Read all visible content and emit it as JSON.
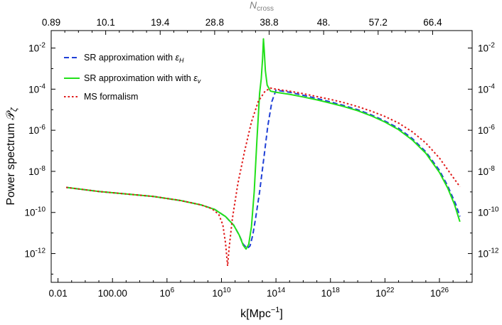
{
  "chart_data": {
    "type": "line",
    "xlabel": "k[Mpc",
    "xlabel_sup": "−1",
    "xlabel_close": "]",
    "ylabel": "Power spectrum 𝒫",
    "ylabel_sub": "ζ",
    "top_axis_label": "N",
    "top_axis_label_sub": "cross",
    "x_scale": "log",
    "y_scale": "log",
    "xlim_log10": [
      -2.5,
      28.4
    ],
    "ylim_log10": [
      -13.4,
      -1.15
    ],
    "bottom_ticks": [
      {
        "log10": -2,
        "label": "0.01"
      },
      {
        "log10": 2,
        "label": "100.00"
      },
      {
        "log10": 6,
        "base": "10",
        "exp": "6"
      },
      {
        "log10": 10,
        "base": "10",
        "exp": "10"
      },
      {
        "log10": 14,
        "base": "10",
        "exp": "14"
      },
      {
        "log10": 18,
        "base": "10",
        "exp": "18"
      },
      {
        "log10": 22,
        "base": "10",
        "exp": "22"
      },
      {
        "log10": 26,
        "base": "10",
        "exp": "26"
      }
    ],
    "top_ticks": [
      {
        "log10": -2.5,
        "label": "0.89"
      },
      {
        "log10": 1.5,
        "label": "10.1"
      },
      {
        "log10": 5.5,
        "label": "19.4"
      },
      {
        "log10": 9.5,
        "label": "28.8"
      },
      {
        "log10": 13.5,
        "label": "38.8"
      },
      {
        "log10": 17.5,
        "label": "48."
      },
      {
        "log10": 21.5,
        "label": "57.2"
      },
      {
        "log10": 25.5,
        "label": "66.4"
      }
    ],
    "y_ticks": [
      {
        "log10": -2,
        "base": "10",
        "exp": "-2"
      },
      {
        "log10": -4,
        "base": "10",
        "exp": "-4"
      },
      {
        "log10": -6,
        "base": "10",
        "exp": "-6"
      },
      {
        "log10": -8,
        "base": "10",
        "exp": "-8"
      },
      {
        "log10": -10,
        "base": "10",
        "exp": "-10"
      },
      {
        "log10": -12,
        "base": "10",
        "exp": "-12"
      }
    ],
    "legend_position": "top-left",
    "series": [
      {
        "name": "SR approximation with ",
        "name_symbol": "ε",
        "name_sub": "H",
        "color": "#1f3fd6",
        "dash": "dashed",
        "points_log10": [
          [
            -1.4,
            -8.78
          ],
          [
            1,
            -8.98
          ],
          [
            3,
            -9.1
          ],
          [
            5,
            -9.22
          ],
          [
            7,
            -9.42
          ],
          [
            8.5,
            -9.63
          ],
          [
            9.5,
            -9.85
          ],
          [
            10.3,
            -10.2
          ],
          [
            10.9,
            -10.62
          ],
          [
            11.3,
            -11.1
          ],
          [
            11.6,
            -11.55
          ],
          [
            11.9,
            -11.75
          ],
          [
            12.1,
            -11.62
          ],
          [
            12.3,
            -11.1
          ],
          [
            12.5,
            -10.3
          ],
          [
            12.8,
            -9.0
          ],
          [
            13.1,
            -7.4
          ],
          [
            13.4,
            -5.8
          ],
          [
            13.7,
            -4.6
          ],
          [
            14,
            -4.05
          ],
          [
            15,
            -4.15
          ],
          [
            16,
            -4.3
          ],
          [
            17,
            -4.45
          ],
          [
            18,
            -4.62
          ],
          [
            19,
            -4.8
          ],
          [
            20,
            -5.0
          ],
          [
            21,
            -5.25
          ],
          [
            22,
            -5.55
          ],
          [
            23,
            -5.9
          ],
          [
            24,
            -6.4
          ],
          [
            25,
            -7.05
          ],
          [
            26,
            -7.95
          ],
          [
            26.6,
            -8.7
          ],
          [
            27.2,
            -9.6
          ],
          [
            27.5,
            -10.2
          ]
        ]
      },
      {
        "name": "SR approximation with with ",
        "name_symbol": "ε",
        "name_sub": "v",
        "color": "#22e01a",
        "dash": "solid",
        "points_log10": [
          [
            -1.4,
            -8.78
          ],
          [
            1,
            -8.98
          ],
          [
            3,
            -9.1
          ],
          [
            5,
            -9.22
          ],
          [
            7,
            -9.42
          ],
          [
            8.5,
            -9.63
          ],
          [
            9.5,
            -9.85
          ],
          [
            10.3,
            -10.2
          ],
          [
            10.9,
            -10.62
          ],
          [
            11.3,
            -11.1
          ],
          [
            11.6,
            -11.6
          ],
          [
            11.8,
            -11.78
          ],
          [
            12,
            -11.55
          ],
          [
            12.2,
            -10.7
          ],
          [
            12.4,
            -9.0
          ],
          [
            12.6,
            -6.5
          ],
          [
            12.8,
            -4.2
          ],
          [
            12.92,
            -3.5
          ],
          [
            13.02,
            -2.5
          ],
          [
            13.08,
            -1.55
          ],
          [
            13.14,
            -2.1
          ],
          [
            13.22,
            -3.1
          ],
          [
            13.35,
            -3.8
          ],
          [
            13.6,
            -4.1
          ],
          [
            14,
            -4.15
          ],
          [
            15,
            -4.25
          ],
          [
            16,
            -4.38
          ],
          [
            17,
            -4.52
          ],
          [
            18,
            -4.68
          ],
          [
            19,
            -4.85
          ],
          [
            20,
            -5.05
          ],
          [
            21,
            -5.3
          ],
          [
            22,
            -5.6
          ],
          [
            23,
            -5.97
          ],
          [
            24,
            -6.47
          ],
          [
            25,
            -7.12
          ],
          [
            26,
            -8.05
          ],
          [
            26.6,
            -8.8
          ],
          [
            27.1,
            -9.6
          ],
          [
            27.5,
            -10.45
          ]
        ]
      },
      {
        "name": "MS formalism",
        "color": "#e01a1a",
        "dash": "dotted",
        "points_log10": [
          [
            -1.4,
            -8.78
          ],
          [
            1,
            -8.98
          ],
          [
            3,
            -9.1
          ],
          [
            5,
            -9.22
          ],
          [
            7,
            -9.42
          ],
          [
            8.5,
            -9.63
          ],
          [
            9.3,
            -9.82
          ],
          [
            9.8,
            -10.1
          ],
          [
            10.1,
            -10.6
          ],
          [
            10.3,
            -11.5
          ],
          [
            10.45,
            -12.6
          ],
          [
            10.55,
            -11.8
          ],
          [
            10.8,
            -10.3
          ],
          [
            11.2,
            -8.6
          ],
          [
            11.7,
            -7.0
          ],
          [
            12.2,
            -5.6
          ],
          [
            12.7,
            -4.6
          ],
          [
            13.2,
            -4.1
          ],
          [
            13.6,
            -3.95
          ],
          [
            14,
            -4.0
          ],
          [
            15,
            -4.1
          ],
          [
            16,
            -4.22
          ],
          [
            17,
            -4.36
          ],
          [
            18,
            -4.5
          ],
          [
            19,
            -4.66
          ],
          [
            20,
            -4.85
          ],
          [
            21,
            -5.07
          ],
          [
            22,
            -5.33
          ],
          [
            23,
            -5.65
          ],
          [
            24,
            -6.07
          ],
          [
            25,
            -6.62
          ],
          [
            26,
            -7.35
          ],
          [
            26.8,
            -8.1
          ],
          [
            27.5,
            -8.75
          ]
        ]
      }
    ]
  }
}
